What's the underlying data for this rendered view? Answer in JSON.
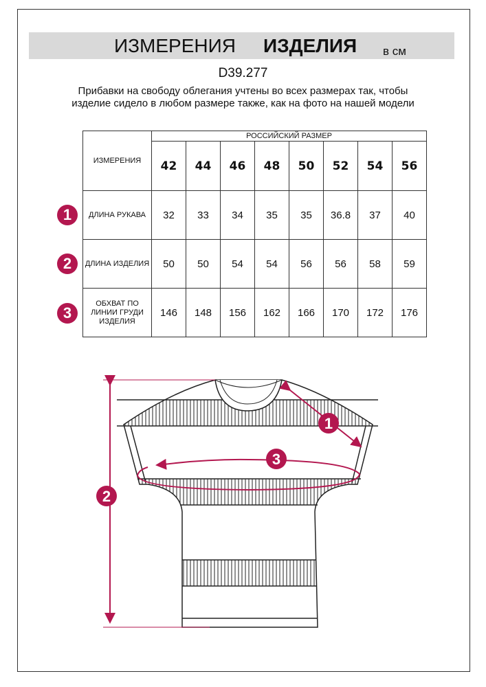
{
  "header": {
    "title_regular": "ИЗМЕРЕНИЯ",
    "title_bold": "ИЗДЕЛИЯ",
    "unit": "в см"
  },
  "article": "D39.277",
  "note": "Прибавки на свободу облегания учтены во всех размерах так, чтобы изделие сидело в любом размере также, как на фото на нашей модели",
  "table": {
    "corner": "ИЗМЕРЕНИЯ",
    "size_group": "РОССИЙСКИЙ РАЗМЕР",
    "sizes": [
      "42",
      "44",
      "46",
      "48",
      "50",
      "52",
      "54",
      "56"
    ],
    "rows": [
      {
        "num": "1",
        "label": "ДЛИНА РУКАВА",
        "values": [
          "32",
          "33",
          "34",
          "35",
          "35",
          "36.8",
          "37",
          "40"
        ]
      },
      {
        "num": "2",
        "label": "ДЛИНА ИЗДЕЛИЯ",
        "values": [
          "50",
          "50",
          "54",
          "54",
          "56",
          "56",
          "58",
          "59"
        ]
      },
      {
        "num": "3",
        "label": "ОБХВАТ ПО ЛИНИИ ГРУДИ ИЗДЕЛИЯ",
        "values": [
          "146",
          "148",
          "156",
          "162",
          "166",
          "170",
          "172",
          "176"
        ]
      }
    ]
  },
  "diagram": {
    "markers": [
      "1",
      "2",
      "3"
    ]
  },
  "colors": {
    "accent": "#b3174f",
    "header_bg": "#d9d9d9"
  }
}
